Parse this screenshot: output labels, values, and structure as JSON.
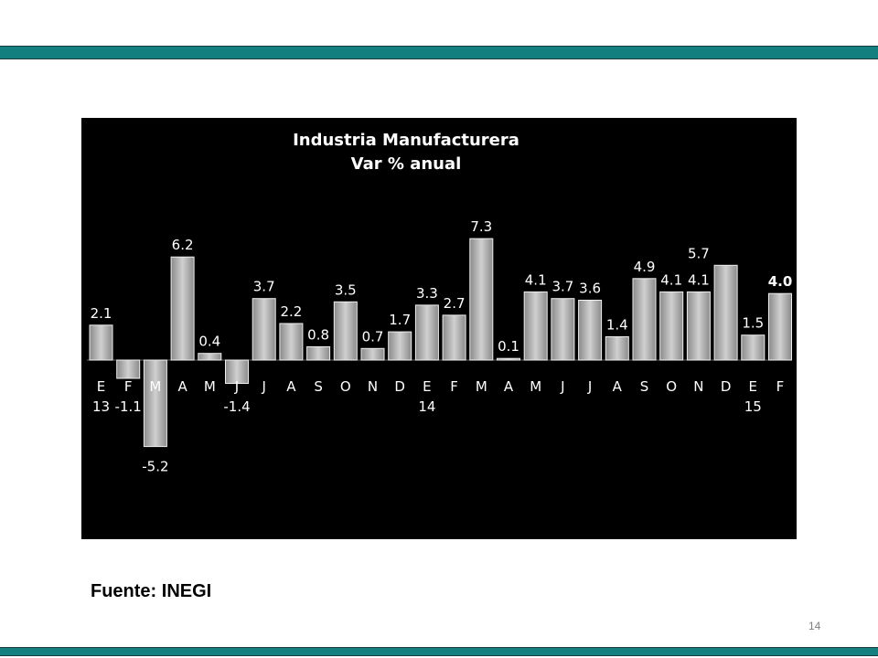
{
  "slide": {
    "source": "Fuente: INEGI",
    "page_number": "14",
    "accent_color": "#137f7f"
  },
  "chart_data": {
    "type": "bar",
    "title": "Industria Manufacturera",
    "subtitle": "Var % anual",
    "background_color": "#000000",
    "bar_color": "#bfbfbf",
    "label_color": "#ffffff",
    "categories": [
      "E",
      "F",
      "M",
      "A",
      "M",
      "J",
      "J",
      "A",
      "S",
      "O",
      "N",
      "D",
      "E",
      "F",
      "M",
      "A",
      "M",
      "J",
      "J",
      "A",
      "S",
      "O",
      "N",
      "D",
      "E",
      "F"
    ],
    "year_labels": [
      "13",
      "",
      "",
      "",
      "",
      "",
      "",
      "",
      "",
      "",
      "",
      "",
      "14",
      "",
      "",
      "",
      "",
      "",
      "",
      "",
      "",
      "",
      "",
      "",
      "15",
      ""
    ],
    "values": [
      2.1,
      -1.1,
      -5.2,
      6.2,
      0.4,
      -1.4,
      3.7,
      2.2,
      0.8,
      3.5,
      0.7,
      1.7,
      3.3,
      2.7,
      7.3,
      0.1,
      4.1,
      3.7,
      3.6,
      1.4,
      4.9,
      4.1,
      4.1,
      5.7,
      1.5,
      4.0
    ],
    "value_labels": [
      "2.1",
      "-1.1",
      "-5.2",
      "6.2",
      "0.4",
      "-1.4",
      "3.7",
      "2.2",
      "0.8",
      "3.5",
      "0.7",
      "1.7",
      "3.3",
      "2.7",
      "7.3",
      "0.1",
      "4.1",
      "3.7",
      "3.6",
      "1.4",
      "4.9",
      "4.1",
      "4.1",
      "",
      "1.5",
      "4.0"
    ],
    "extra_labels": [
      "5.7"
    ],
    "bold_labels": [
      "4.0"
    ],
    "ylim": [
      -6,
      8
    ],
    "xlabel": "",
    "ylabel": "",
    "grid": false,
    "legend": "none"
  }
}
